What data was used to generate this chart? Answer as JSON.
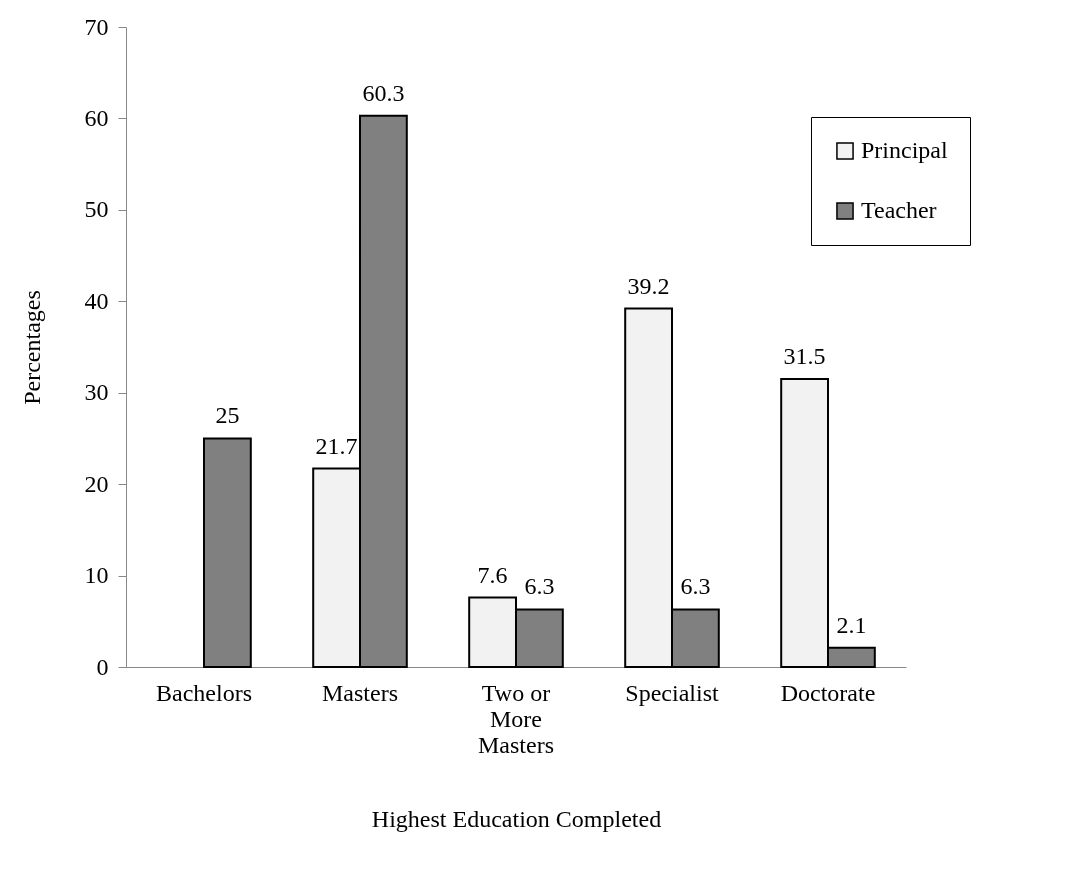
{
  "chart_data": {
    "type": "bar",
    "xlabel": "Highest Education Completed",
    "ylabel": "Percentages",
    "categories": [
      "Bachelors",
      "Masters",
      "Two or More Masters",
      "Specialist",
      "Doctorate"
    ],
    "series": [
      {
        "name": "Principal",
        "color": "#f2f2f2",
        "values": [
          null,
          21.7,
          7.6,
          39.2,
          31.5
        ]
      },
      {
        "name": "Teacher",
        "color": "#808080",
        "values": [
          25,
          60.3,
          6.3,
          6.3,
          2.1
        ]
      }
    ],
    "ylim": [
      0,
      70
    ],
    "yticks": [
      0,
      10,
      20,
      30,
      40,
      50,
      60,
      70
    ],
    "grid": false,
    "legend": "top right",
    "data_labels": true
  }
}
